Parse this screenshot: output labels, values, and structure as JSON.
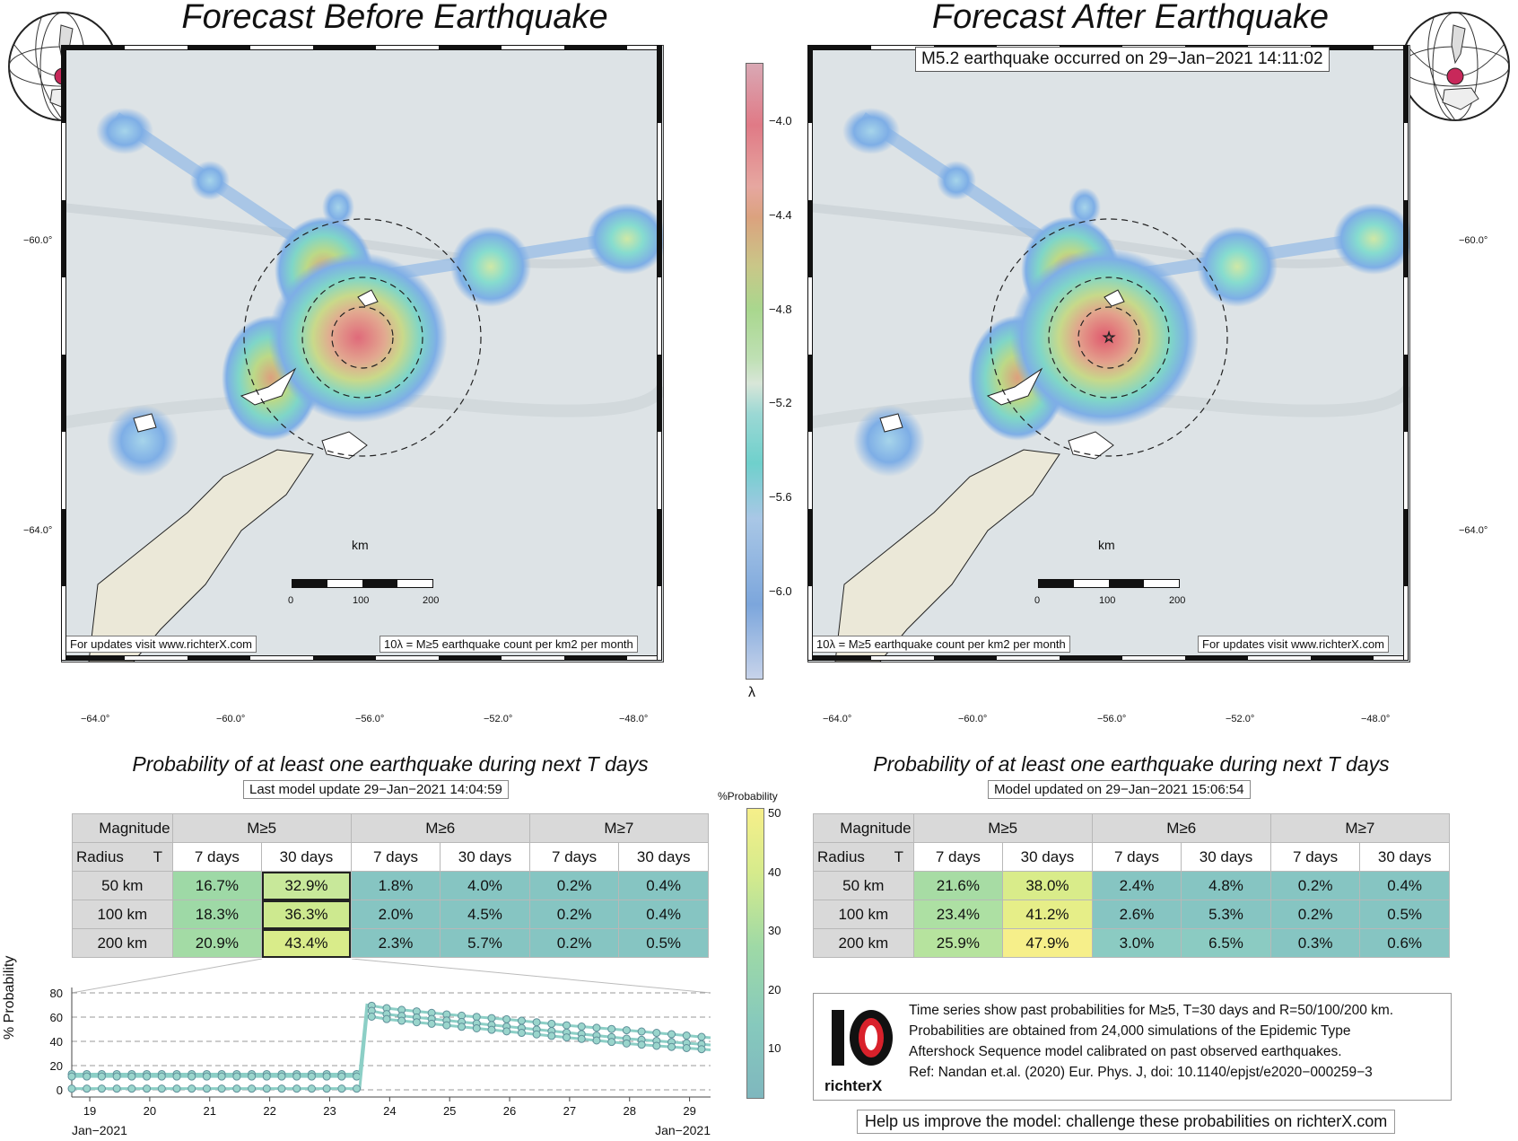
{
  "left_map": {
    "title": "Forecast Before Earthquake",
    "lat_ticks": [
      "−60.0°",
      "−64.0°"
    ],
    "lon_ticks": [
      "−64.0°",
      "−60.0°",
      "−56.0°",
      "−52.0°",
      "−48.0°"
    ],
    "note_left": "For updates visit www.richterX.com",
    "note_right": "10λ = M≥5 earthquake count per km2 per month",
    "scale_unit": "km",
    "scale_ticks": [
      "0",
      "100",
      "200"
    ]
  },
  "right_map": {
    "title": "Forecast After Earthquake",
    "event_label": "M5.2 earthquake occurred on 29−Jan−2021 14:11:02",
    "lat_ticks": [
      "−60.0°",
      "−64.0°"
    ],
    "lon_ticks": [
      "−64.0°",
      "−60.0°",
      "−56.0°",
      "−52.0°",
      "−48.0°"
    ],
    "note_left": "10λ = M≥5 earthquake count per km2 per month",
    "note_right": "For updates visit www.richterX.com",
    "scale_unit": "km",
    "scale_ticks": [
      "0",
      "100",
      "200"
    ]
  },
  "rate_colorbar": {
    "symbol": "λ",
    "ticks": [
      "−4.0",
      "−4.4",
      "−4.8",
      "−5.2",
      "−5.6",
      "−6.0"
    ]
  },
  "prob_colorbar": {
    "title": "%Probability",
    "ticks": [
      "50",
      "40",
      "30",
      "20",
      "10"
    ]
  },
  "left_table": {
    "title": "Probability of at least one earthquake during next T days",
    "update": "Last model update 29−Jan−2021 14:04:59",
    "corner_top": "Magnitude",
    "corner_radius": "Radius",
    "corner_t": "T",
    "mags": [
      "M≥5",
      "M≥6",
      "M≥7"
    ],
    "periods": [
      "7 days",
      "30 days",
      "7 days",
      "30 days",
      "7 days",
      "30 days"
    ],
    "rows": [
      {
        "radius": "50 km",
        "cells": [
          "16.7%",
          "32.9%",
          "1.8%",
          "4.0%",
          "0.2%",
          "0.4%"
        ]
      },
      {
        "radius": "100 km",
        "cells": [
          "18.3%",
          "36.3%",
          "2.0%",
          "4.5%",
          "0.2%",
          "0.4%"
        ]
      },
      {
        "radius": "200 km",
        "cells": [
          "20.9%",
          "43.4%",
          "2.3%",
          "5.7%",
          "0.2%",
          "0.5%"
        ]
      }
    ]
  },
  "right_table": {
    "title": "Probability of at least one earthquake during next T days",
    "update": "Model updated on 29−Jan−2021 15:06:54",
    "corner_top": "Magnitude",
    "corner_radius": "Radius",
    "corner_t": "T",
    "mags": [
      "M≥5",
      "M≥6",
      "M≥7"
    ],
    "periods": [
      "7 days",
      "30 days",
      "7 days",
      "30 days",
      "7 days",
      "30 days"
    ],
    "rows": [
      {
        "radius": "50 km",
        "cells": [
          "21.6%",
          "38.0%",
          "2.4%",
          "4.8%",
          "0.2%",
          "0.4%"
        ]
      },
      {
        "radius": "100 km",
        "cells": [
          "23.4%",
          "41.2%",
          "2.6%",
          "5.3%",
          "0.2%",
          "0.5%"
        ]
      },
      {
        "radius": "200 km",
        "cells": [
          "25.9%",
          "47.9%",
          "3.0%",
          "6.5%",
          "0.3%",
          "0.6%"
        ]
      }
    ]
  },
  "info": {
    "lines": [
      "Time series show past probabilities for M≥5, T=30 days and R=50/100/200 km.",
      "Probabilities are obtained from 24,000 simulations of the Epidemic Type",
      "Aftershock Sequence model calibrated on past observed earthquakes.",
      "Ref: Nandan et.al. (2020) Eur. Phys. J, doi: 10.1140/epjst/e2020−000259−3"
    ],
    "logo_text": "richterX"
  },
  "help_text": "Help us improve the model: challenge these probabilities on richterX.com",
  "colors": {
    "teal": "#86c5c2",
    "green": "#9ed9a6",
    "yellow_green": "#d6eb8c",
    "yellow": "#f6ef8a",
    "dark_teal": "#7fbcbf",
    "logo_red": "#d9212b"
  },
  "chart_data": {
    "type": "line",
    "ylabel": "% Probability",
    "ylim": [
      0,
      80
    ],
    "y_ticks": [
      "0",
      "20",
      "40",
      "60",
      "80"
    ],
    "x_ticks": [
      "19",
      "20",
      "21",
      "22",
      "23",
      "24",
      "25",
      "26",
      "27",
      "28",
      "29"
    ],
    "x_tick_values": [
      19,
      20,
      21,
      22,
      23,
      24,
      25,
      26,
      27,
      28,
      29
    ],
    "x_start_label": "Jan−2021",
    "x_end_label": "Jan−2021",
    "xlim": [
      18.7,
      29.35
    ],
    "jump_day": 23.55,
    "series": [
      {
        "values": [
          [
            18.7,
            13
          ],
          [
            23.5,
            13
          ],
          [
            23.62,
            70
          ],
          [
            24.0,
            67
          ],
          [
            25.0,
            62
          ],
          [
            26.0,
            58
          ],
          [
            27.0,
            53
          ],
          [
            28.0,
            49
          ],
          [
            29.35,
            43
          ]
        ]
      },
      {
        "values": [
          [
            18.7,
            11
          ],
          [
            23.5,
            11
          ],
          [
            23.62,
            66
          ],
          [
            24.0,
            62
          ],
          [
            25.0,
            57
          ],
          [
            26.0,
            52
          ],
          [
            27.0,
            47
          ],
          [
            28.0,
            42
          ],
          [
            29.35,
            37
          ]
        ]
      },
      {
        "values": [
          [
            18.7,
            1
          ],
          [
            23.5,
            1
          ],
          [
            23.62,
            61
          ],
          [
            24.0,
            58
          ],
          [
            25.0,
            53
          ],
          [
            26.0,
            48
          ],
          [
            27.0,
            43
          ],
          [
            28.0,
            38
          ],
          [
            29.35,
            33
          ]
        ]
      }
    ]
  }
}
